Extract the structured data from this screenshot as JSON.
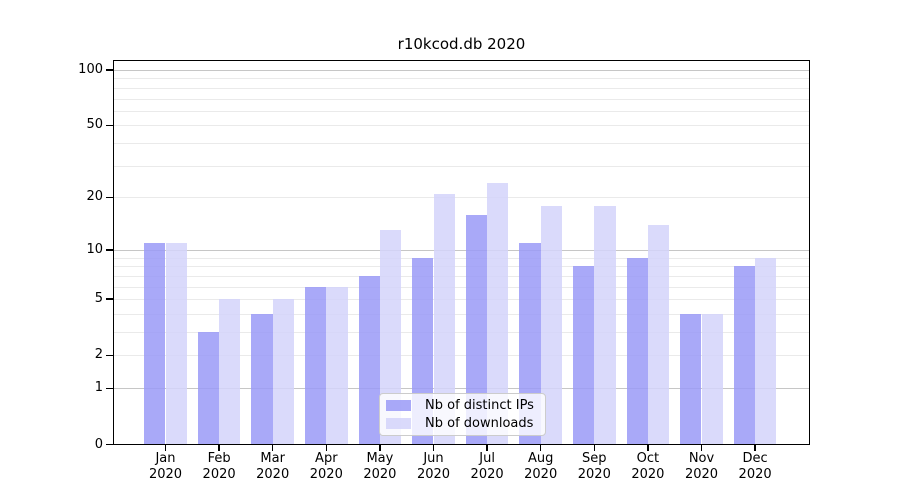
{
  "title": "r10kcod.db 2020",
  "legend": {
    "items": [
      {
        "label": "Nb of distinct IPs",
        "color": "rgba(154,154,247,0.85)"
      },
      {
        "label": "Nb of downloads",
        "color": "rgba(211,211,250,0.85)"
      }
    ]
  },
  "chart_data": {
    "type": "bar",
    "title": "r10kcod.db 2020",
    "categories": [
      {
        "month": "Jan",
        "year": "2020"
      },
      {
        "month": "Feb",
        "year": "2020"
      },
      {
        "month": "Mar",
        "year": "2020"
      },
      {
        "month": "Apr",
        "year": "2020"
      },
      {
        "month": "May",
        "year": "2020"
      },
      {
        "month": "Jun",
        "year": "2020"
      },
      {
        "month": "Jul",
        "year": "2020"
      },
      {
        "month": "Aug",
        "year": "2020"
      },
      {
        "month": "Sep",
        "year": "2020"
      },
      {
        "month": "Oct",
        "year": "2020"
      },
      {
        "month": "Nov",
        "year": "2020"
      },
      {
        "month": "Dec",
        "year": "2020"
      }
    ],
    "series": [
      {
        "name": "Nb of distinct IPs",
        "color": "rgba(154,154,247,0.85)",
        "color_hex": "#aaaaf8",
        "values": [
          11,
          3,
          4,
          6,
          7,
          9,
          16,
          11,
          8,
          9,
          4,
          8
        ]
      },
      {
        "name": "Nb of downloads",
        "color": "rgba(211,211,250,0.85)",
        "color_hex": "#d9d9fa",
        "values": [
          11,
          5,
          5,
          6,
          13,
          21,
          24,
          18,
          18,
          14,
          4,
          9
        ]
      }
    ],
    "xlabel": "",
    "ylabel": "",
    "yscale": "log1p",
    "ylim": [
      0,
      113
    ],
    "y_tick_labels": [
      "100",
      "50",
      "20",
      "10",
      "5",
      "2",
      "1",
      "0"
    ],
    "y_tick_values": [
      100,
      50,
      20,
      10,
      5,
      2,
      1,
      0
    ],
    "y_major_gridlines": [
      1,
      10,
      100
    ],
    "y_minor_gridlines": [
      2,
      3,
      4,
      5,
      6,
      7,
      8,
      9,
      20,
      30,
      40,
      50,
      60,
      70,
      80,
      90
    ],
    "grid": true,
    "legend_position": "lower center"
  },
  "colors": {
    "background": "#ffffff",
    "grid_minor": "#eaeaea",
    "grid_major": "#c6c6c6",
    "axis": "#000000",
    "legend_border": "#cccccc"
  }
}
